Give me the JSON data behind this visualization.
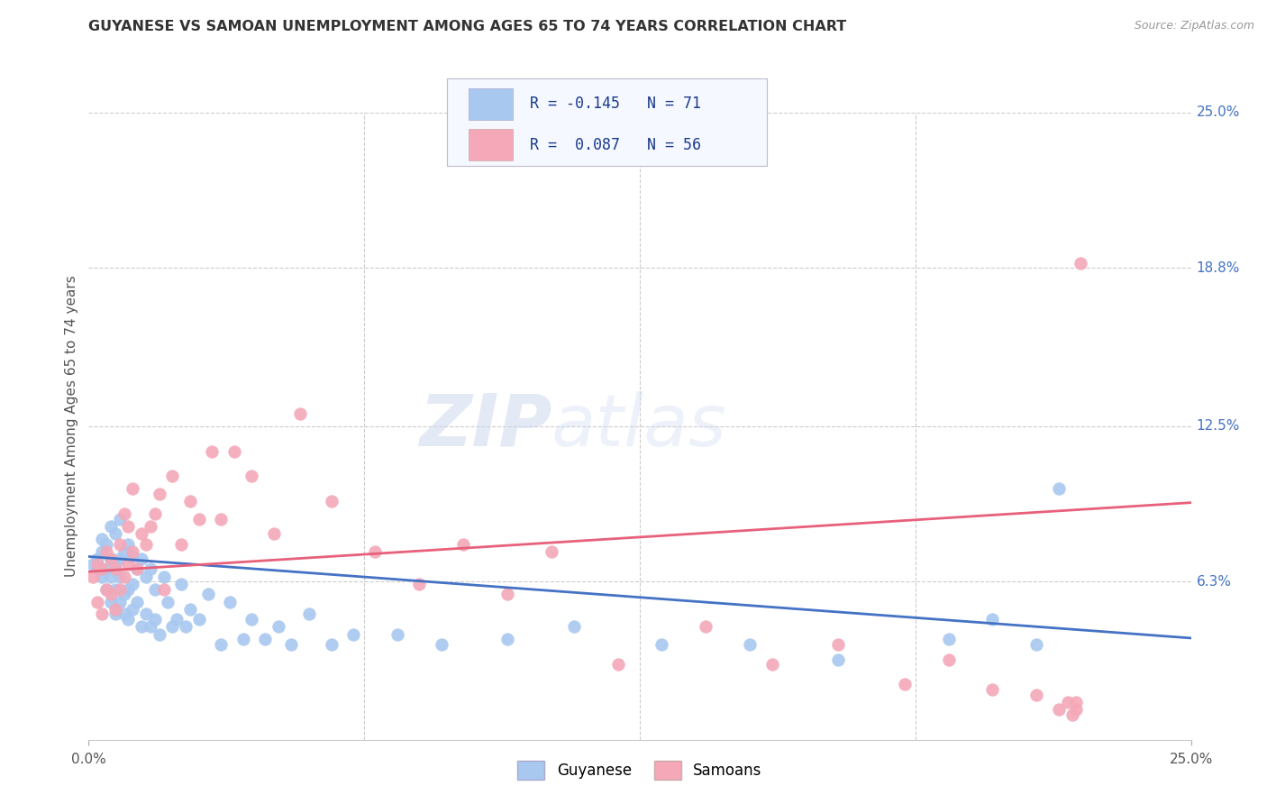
{
  "title": "GUYANESE VS SAMOAN UNEMPLOYMENT AMONG AGES 65 TO 74 YEARS CORRELATION CHART",
  "source": "Source: ZipAtlas.com",
  "ylabel": "Unemployment Among Ages 65 to 74 years",
  "xlim": [
    0.0,
    0.25
  ],
  "ylim": [
    0.0,
    0.25
  ],
  "ytick_labels_right": [
    "25.0%",
    "18.8%",
    "12.5%",
    "6.3%"
  ],
  "ytick_positions_right": [
    0.25,
    0.188,
    0.125,
    0.063
  ],
  "grid_color": "#cccccc",
  "background_color": "#ffffff",
  "guyanese_color": "#a8c8f0",
  "samoan_color": "#f4a8b8",
  "guyanese_line_color": "#4472c4",
  "samoan_line_color": "#e8607a",
  "R_guyanese": -0.145,
  "N_guyanese": 71,
  "R_samoan": 0.087,
  "N_samoan": 56,
  "guyanese_x": [
    0.001,
    0.002,
    0.002,
    0.003,
    0.003,
    0.003,
    0.004,
    0.004,
    0.004,
    0.005,
    0.005,
    0.005,
    0.005,
    0.006,
    0.006,
    0.006,
    0.006,
    0.007,
    0.007,
    0.007,
    0.007,
    0.008,
    0.008,
    0.008,
    0.009,
    0.009,
    0.009,
    0.01,
    0.01,
    0.01,
    0.011,
    0.011,
    0.012,
    0.012,
    0.013,
    0.013,
    0.014,
    0.014,
    0.015,
    0.015,
    0.016,
    0.017,
    0.018,
    0.019,
    0.02,
    0.021,
    0.022,
    0.023,
    0.025,
    0.027,
    0.03,
    0.032,
    0.035,
    0.037,
    0.04,
    0.043,
    0.046,
    0.05,
    0.055,
    0.06,
    0.07,
    0.08,
    0.095,
    0.11,
    0.13,
    0.15,
    0.17,
    0.195,
    0.205,
    0.215,
    0.22
  ],
  "guyanese_y": [
    0.07,
    0.068,
    0.072,
    0.065,
    0.075,
    0.08,
    0.06,
    0.068,
    0.078,
    0.055,
    0.065,
    0.072,
    0.085,
    0.05,
    0.06,
    0.07,
    0.082,
    0.055,
    0.065,
    0.072,
    0.088,
    0.05,
    0.058,
    0.075,
    0.048,
    0.06,
    0.078,
    0.052,
    0.062,
    0.073,
    0.055,
    0.068,
    0.045,
    0.072,
    0.05,
    0.065,
    0.045,
    0.068,
    0.048,
    0.06,
    0.042,
    0.065,
    0.055,
    0.045,
    0.048,
    0.062,
    0.045,
    0.052,
    0.048,
    0.058,
    0.038,
    0.055,
    0.04,
    0.048,
    0.04,
    0.045,
    0.038,
    0.05,
    0.038,
    0.042,
    0.042,
    0.038,
    0.04,
    0.045,
    0.038,
    0.038,
    0.032,
    0.04,
    0.048,
    0.038,
    0.1
  ],
  "samoan_x": [
    0.001,
    0.002,
    0.002,
    0.003,
    0.003,
    0.004,
    0.004,
    0.005,
    0.005,
    0.006,
    0.006,
    0.007,
    0.007,
    0.008,
    0.008,
    0.009,
    0.009,
    0.01,
    0.01,
    0.011,
    0.012,
    0.013,
    0.014,
    0.015,
    0.016,
    0.017,
    0.019,
    0.021,
    0.023,
    0.025,
    0.028,
    0.03,
    0.033,
    0.037,
    0.042,
    0.048,
    0.055,
    0.065,
    0.075,
    0.085,
    0.095,
    0.105,
    0.12,
    0.14,
    0.155,
    0.17,
    0.185,
    0.195,
    0.205,
    0.215,
    0.22,
    0.222,
    0.223,
    0.224,
    0.224,
    0.225
  ],
  "samoan_y": [
    0.065,
    0.055,
    0.07,
    0.05,
    0.068,
    0.06,
    0.075,
    0.058,
    0.072,
    0.052,
    0.068,
    0.06,
    0.078,
    0.065,
    0.09,
    0.07,
    0.085,
    0.075,
    0.1,
    0.068,
    0.082,
    0.078,
    0.085,
    0.09,
    0.098,
    0.06,
    0.105,
    0.078,
    0.095,
    0.088,
    0.115,
    0.088,
    0.115,
    0.105,
    0.082,
    0.13,
    0.095,
    0.075,
    0.062,
    0.078,
    0.058,
    0.075,
    0.03,
    0.045,
    0.03,
    0.038,
    0.022,
    0.032,
    0.02,
    0.018,
    0.012,
    0.015,
    0.01,
    0.015,
    0.012,
    0.19
  ]
}
